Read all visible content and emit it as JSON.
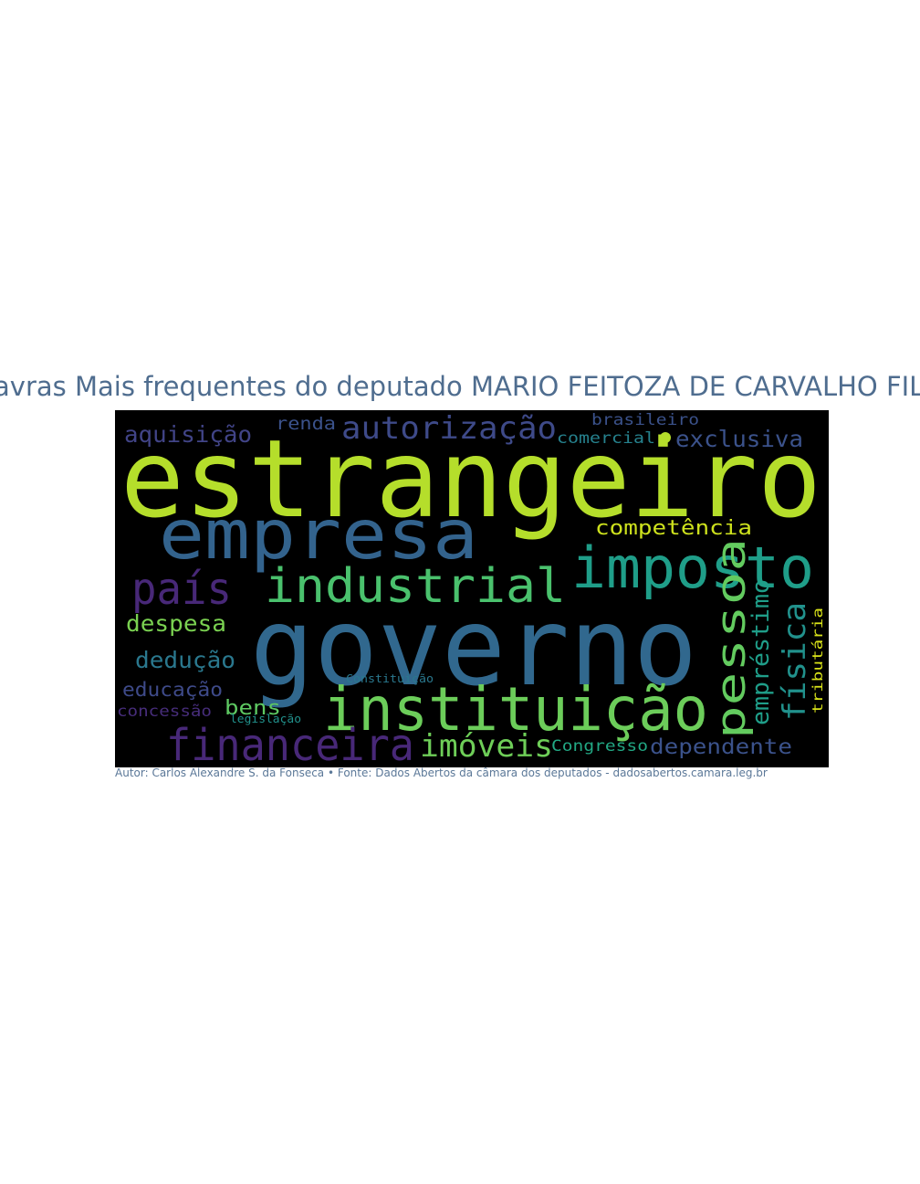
{
  "title": "Palavras Mais frequentes do deputado MARIO FEITOZA DE CARVALHO FILHO",
  "caption": "Autor: Carlos Alexandre S. da Fonseca • Fonte: Dados Abertos da câmara dos deputados - dadosabertos.camara.leg.br",
  "chart_data": {
    "type": "wordcloud",
    "title": "Palavras Mais frequentes do deputado MARIO FEITOZA DE CARVALHO FILHO",
    "background": "#000000",
    "words": [
      {
        "text": "estrangeiro",
        "weight": 100,
        "color": "#b5de2b",
        "orientation": "horizontal"
      },
      {
        "text": "governo",
        "weight": 92,
        "color": "#31688e",
        "orientation": "horizontal"
      },
      {
        "text": "empresa",
        "weight": 62,
        "color": "#33638d",
        "orientation": "horizontal"
      },
      {
        "text": "instituição",
        "weight": 56,
        "color": "#6ccd5a",
        "orientation": "horizontal"
      },
      {
        "text": "imposto",
        "weight": 50,
        "color": "#1f9e89",
        "orientation": "horizontal"
      },
      {
        "text": "industrial",
        "weight": 45,
        "color": "#4ac16d",
        "orientation": "horizontal"
      },
      {
        "text": "financeira",
        "weight": 43,
        "color": "#482878",
        "orientation": "horizontal"
      },
      {
        "text": "país",
        "weight": 41,
        "color": "#482878",
        "orientation": "horizontal"
      },
      {
        "text": "pessoa",
        "weight": 41,
        "color": "#63cb5f",
        "orientation": "vertical"
      },
      {
        "text": "física",
        "weight": 33,
        "color": "#21918c",
        "orientation": "vertical"
      },
      {
        "text": "autorização",
        "weight": 33,
        "color": "#3e4a89",
        "orientation": "horizontal"
      },
      {
        "text": "imóveis",
        "weight": 33,
        "color": "#6ece58",
        "orientation": "horizontal"
      },
      {
        "text": "empréstimo",
        "weight": 25,
        "color": "#1f9e89",
        "orientation": "vertical"
      },
      {
        "text": "aquisição",
        "weight": 23,
        "color": "#414487",
        "orientation": "horizontal"
      },
      {
        "text": "despesa",
        "weight": 23,
        "color": "#7ad151",
        "orientation": "horizontal"
      },
      {
        "text": "dedução",
        "weight": 23,
        "color": "#2a788e",
        "orientation": "horizontal"
      },
      {
        "text": "dependente",
        "weight": 23,
        "color": "#3b528b",
        "orientation": "horizontal"
      },
      {
        "text": "exclusiva",
        "weight": 23,
        "color": "#3b528b",
        "orientation": "horizontal"
      },
      {
        "text": "competência",
        "weight": 22,
        "color": "#cde11d",
        "orientation": "horizontal"
      },
      {
        "text": "bens",
        "weight": 22,
        "color": "#5ec962",
        "orientation": "horizontal"
      },
      {
        "text": "educação",
        "weight": 20,
        "color": "#3e4a89",
        "orientation": "horizontal"
      },
      {
        "text": "renda",
        "weight": 18,
        "color": "#3b528b",
        "orientation": "horizontal"
      },
      {
        "text": "brasileiro",
        "weight": 16,
        "color": "#3b528b",
        "orientation": "horizontal"
      },
      {
        "text": "comercial",
        "weight": 16,
        "color": "#26828e",
        "orientation": "horizontal"
      },
      {
        "text": "Congresso",
        "weight": 16,
        "color": "#22a884",
        "orientation": "horizontal"
      },
      {
        "text": "concessão",
        "weight": 15,
        "color": "#472d7b",
        "orientation": "horizontal"
      },
      {
        "text": "tributária",
        "weight": 13,
        "color": "#d8e219",
        "orientation": "vertical"
      },
      {
        "text": "Constituição",
        "weight": 11,
        "color": "#2a788e",
        "orientation": "horizontal"
      },
      {
        "text": "legislação",
        "weight": 11,
        "color": "#21918c",
        "orientation": "horizontal"
      }
    ]
  }
}
